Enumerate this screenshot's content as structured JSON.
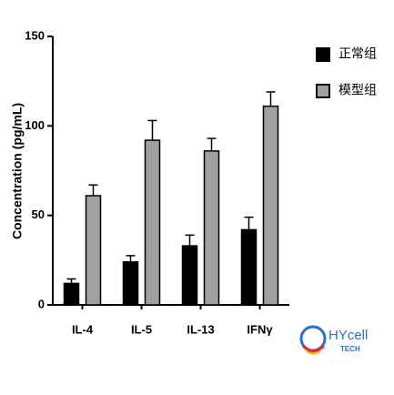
{
  "chart_data": {
    "type": "bar",
    "y_label": "Concentration (pg/mL)",
    "categories": [
      "IL-4",
      "IL-5",
      "IL-13",
      "IFNγ"
    ],
    "series": [
      {
        "name": "正常组",
        "color": "#000000",
        "values": [
          12,
          24,
          33,
          42
        ],
        "errors": [
          2.5,
          3.5,
          6,
          7
        ]
      },
      {
        "name": "模型组",
        "color": "#a0a0a0",
        "values": [
          61,
          92,
          86,
          111
        ],
        "errors": [
          6,
          11,
          7,
          8
        ]
      }
    ],
    "ylim": [
      0,
      150
    ],
    "yticks": [
      0,
      50,
      100,
      150
    ],
    "grid": false,
    "legend": "right"
  },
  "logo": {
    "name": "HYcell",
    "sub": "TECH"
  }
}
